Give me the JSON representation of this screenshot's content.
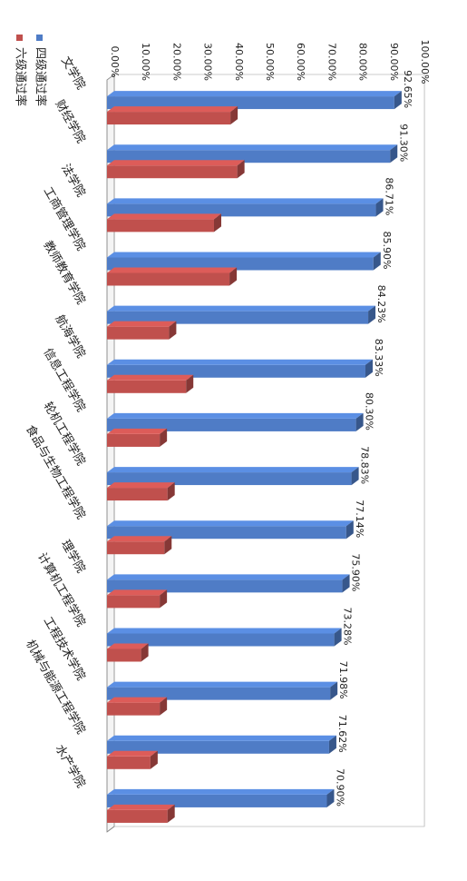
{
  "chart_data": {
    "type": "bar",
    "orientation": "horizontal-3d",
    "categories": [
      "文学院",
      "财经学院",
      "法学院",
      "工商管理学院",
      "教师教育学院",
      "航海学院",
      "信息工程学院",
      "轮机工程学院",
      "食品与生物工程学院",
      "理学院",
      "计算机工程学院",
      "工程技术学院",
      "机械与能源工程学院",
      "水产学院"
    ],
    "series": [
      {
        "name": "四级通过率",
        "color": "#4F7CC6",
        "values": [
          92.65,
          91.3,
          86.71,
          85.9,
          84.23,
          83.33,
          80.3,
          78.83,
          77.14,
          75.9,
          73.28,
          71.98,
          71.62,
          70.9
        ],
        "labels": [
          "92.65%",
          "91.30%",
          "86.71%",
          "85.90%",
          "84.23%",
          "83.33%",
          "80.30%",
          "78.83%",
          "77.14%",
          "75.90%",
          "73.28%",
          "71.98%",
          "71.62%",
          "70.90%"
        ]
      },
      {
        "name": "六级通过率",
        "color": "#C0504D",
        "values": [
          39.8,
          42.0,
          34.5,
          39.5,
          20.0,
          25.5,
          17.0,
          19.5,
          18.5,
          17.0,
          11.0,
          17.0,
          14.0,
          19.5
        ]
      }
    ],
    "value_axis": {
      "min": 0,
      "max": 100,
      "ticks": [
        "0.00%",
        "10.00%",
        "20.00%",
        "30.00%",
        "40.00%",
        "50.00%",
        "60.00%",
        "70.00%",
        "80.00%",
        "90.00%",
        "100.00%"
      ]
    },
    "legend_position": "top-left",
    "grid": true
  }
}
